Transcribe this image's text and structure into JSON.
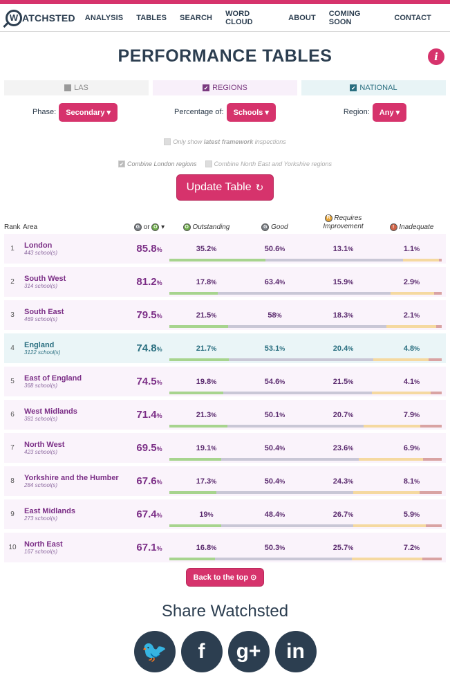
{
  "nav": {
    "logo_letter": "W",
    "logo_text": "ATCHSTED",
    "links": [
      "ANALYSIS",
      "TABLES",
      "SEARCH",
      "WORD CLOUD",
      "ABOUT",
      "COMING SOON",
      "CONTACT"
    ]
  },
  "page": {
    "title": "PERFORMANCE TABLES",
    "info_icon": "i"
  },
  "toggles": {
    "las": "LAS",
    "regions": "REGIONS",
    "national": "NATIONAL"
  },
  "filters": {
    "phase_label": "Phase:",
    "phase_value": "Secondary ▾",
    "pct_label": "Percentage of:",
    "pct_value": "Schools ▾",
    "region_label": "Region:",
    "region_value": "Any ▾"
  },
  "options": {
    "latest_prefix": "Only show ",
    "latest_bold": "latest framework",
    "latest_suffix": " inspections",
    "combine_london": "Combine London regions",
    "combine_ne": "Combine North East and Yorkshire regions"
  },
  "update_button": "Update Table",
  "table_header": {
    "rank": "Rank",
    "area": "Area",
    "or": "or",
    "sort_icon": "▾",
    "outstanding": "Outstanding",
    "good": "Good",
    "requires_1": "Requires",
    "requires_2": "Improvement",
    "inadequate": "Inadequate",
    "badge_g": "G",
    "badge_o": "O",
    "badge_r": "R",
    "badge_i": "!"
  },
  "pct_sign": "%",
  "rows": [
    {
      "rank": "1",
      "name": "London",
      "count": "443 school(s)",
      "score": "85.8",
      "o": "35.2",
      "g": "50.6",
      "r": "13.1",
      "i": "1.1"
    },
    {
      "rank": "2",
      "name": "South West",
      "count": "314 school(s)",
      "score": "81.2",
      "o": "17.8",
      "g": "63.4",
      "r": "15.9",
      "i": "2.9"
    },
    {
      "rank": "3",
      "name": "South East",
      "count": "469 school(s)",
      "score": "79.5",
      "o": "21.5",
      "g": "58",
      "r": "18.3",
      "i": "2.1"
    },
    {
      "rank": "4",
      "name": "England",
      "count": "3122 school(s)",
      "score": "74.8",
      "o": "21.7",
      "g": "53.1",
      "r": "20.4",
      "i": "4.8",
      "national": true
    },
    {
      "rank": "5",
      "name": "East of England",
      "count": "368 school(s)",
      "score": "74.5",
      "o": "19.8",
      "g": "54.6",
      "r": "21.5",
      "i": "4.1"
    },
    {
      "rank": "6",
      "name": "West Midlands",
      "count": "381 school(s)",
      "score": "71.4",
      "o": "21.3",
      "g": "50.1",
      "r": "20.7",
      "i": "7.9"
    },
    {
      "rank": "7",
      "name": "North West",
      "count": "423 school(s)",
      "score": "69.5",
      "o": "19.1",
      "g": "50.4",
      "r": "23.6",
      "i": "6.9"
    },
    {
      "rank": "8",
      "name": "Yorkshire and the Humber",
      "count": "284 school(s)",
      "score": "67.6",
      "o": "17.3",
      "g": "50.4",
      "r": "24.3",
      "i": "8.1"
    },
    {
      "rank": "9",
      "name": "East Midlands",
      "count": "273 school(s)",
      "score": "67.4",
      "o": "19",
      "g": "48.4",
      "r": "26.7",
      "i": "5.9"
    },
    {
      "rank": "10",
      "name": "North East",
      "count": "167 school(s)",
      "score": "67.1",
      "o": "16.8",
      "g": "50.3",
      "r": "25.7",
      "i": "7.2"
    }
  ],
  "back_button": "Back to the top ⊙",
  "share": {
    "title": "Share Watchsted",
    "twitter": "🐦",
    "facebook": "f",
    "google": "g+",
    "linkedin": "in"
  },
  "colors": {
    "accent": "#d6336c",
    "dark": "#2c3e50",
    "region": "#7b2e86",
    "national": "#2a6f80"
  }
}
